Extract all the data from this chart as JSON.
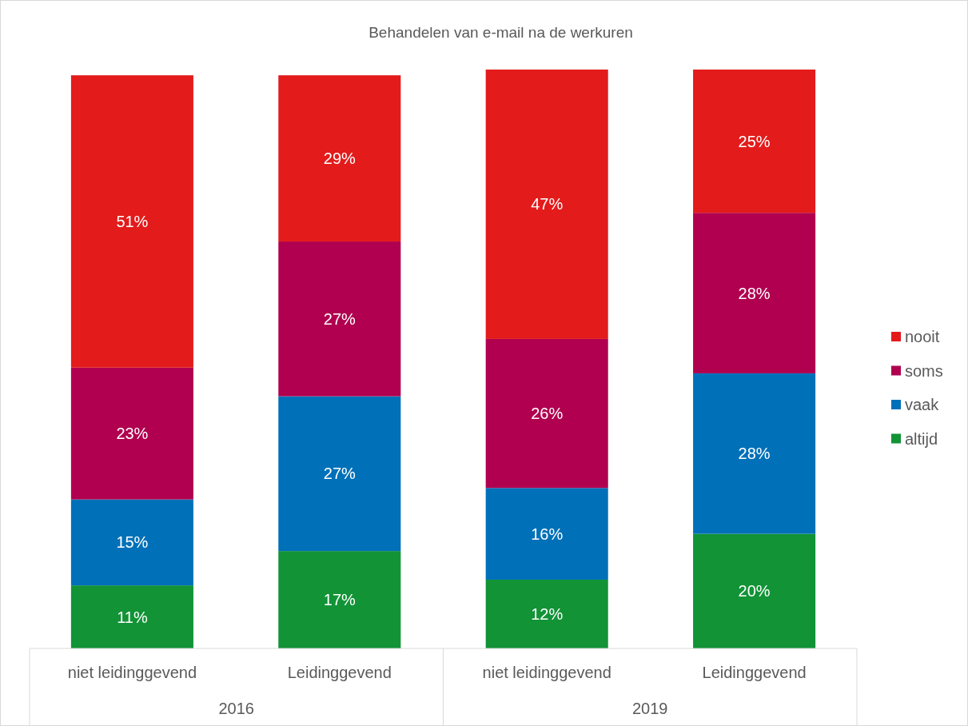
{
  "chart_data": {
    "type": "bar",
    "title": "Behandelen van e-mail na de werkuren",
    "stacked": true,
    "legend": "right",
    "categories": [
      "niet leidinggevend",
      "Leidinggevend",
      "niet leidinggevend",
      "Leidinggevend"
    ],
    "annotations": [
      "2016",
      "2019"
    ],
    "series": [
      {
        "name": "altijd",
        "color": "#119336",
        "values": [
          11,
          17,
          12,
          20
        ],
        "value_labels": [
          "11%",
          "17%",
          "12%",
          "20%"
        ]
      },
      {
        "name": "vaak",
        "color": "#0070b8",
        "values": [
          15,
          27,
          16,
          28
        ],
        "value_labels": [
          "15%",
          "27%",
          "16%",
          "28%"
        ]
      },
      {
        "name": "soms",
        "color": "#b0004f",
        "values": [
          23,
          27,
          26,
          28
        ],
        "value_labels": [
          "23%",
          "27%",
          "26%",
          "28%"
        ]
      },
      {
        "name": "nooit",
        "color": "#e31b1b",
        "values": [
          51,
          29,
          47,
          25
        ],
        "value_labels": [
          "51%",
          "29%",
          "47%",
          "25%"
        ]
      }
    ]
  }
}
